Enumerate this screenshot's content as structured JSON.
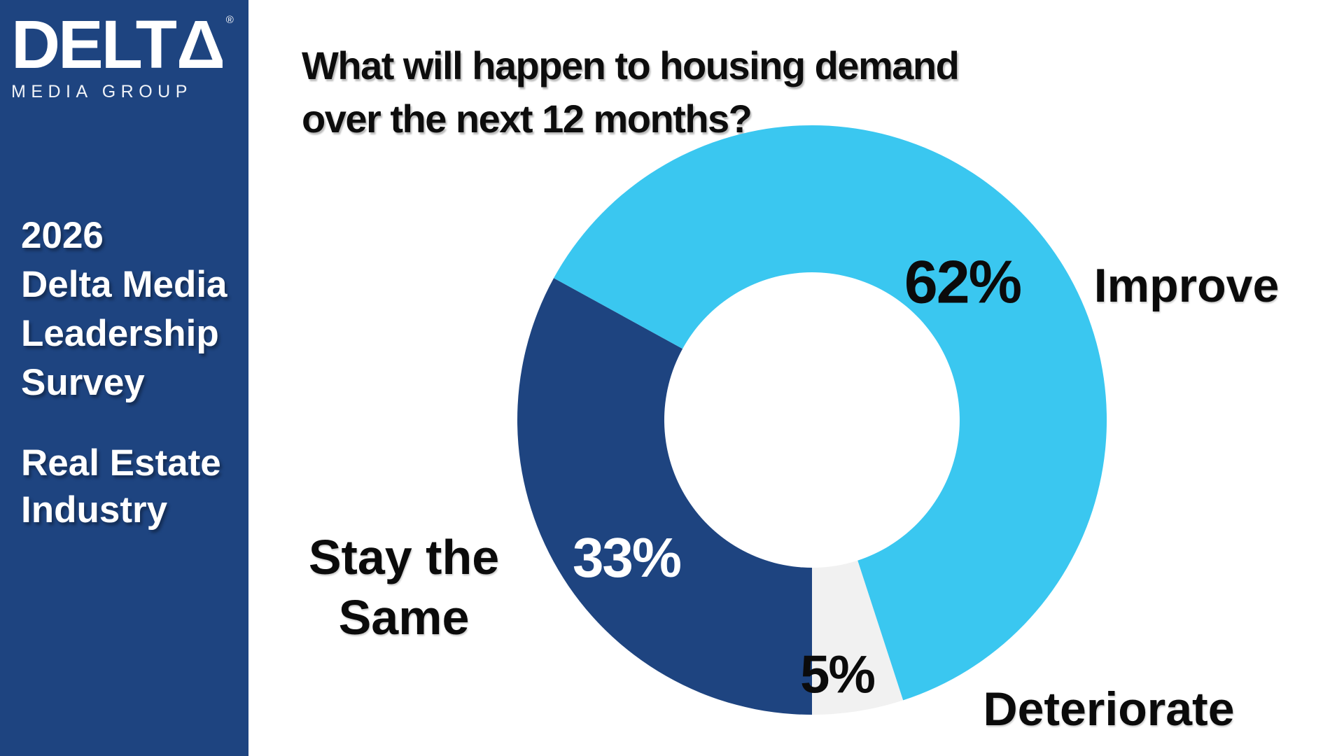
{
  "sidebar": {
    "bg_color": "#1E4480",
    "logo": {
      "brand_text": "DELT",
      "triangle_glyph": "Δ",
      "registered_mark": "®",
      "subtitle": "MEDIA GROUP"
    },
    "heading_lines": [
      "2026",
      "Delta Media",
      "Leadership",
      "Survey"
    ],
    "subheading_lines": [
      "Real Estate",
      "Industry"
    ]
  },
  "chart_data": {
    "type": "pie",
    "subtype": "donut",
    "title": "What will happen to housing demand over the next 12 months?",
    "title_lines": [
      "What will happen to housing demand",
      "over the next 12 months?"
    ],
    "categories": [
      "Improve",
      "Stay the Same",
      "Deteriorate"
    ],
    "values": [
      62,
      33,
      5
    ],
    "unit": "%",
    "slices": [
      {
        "label": "Stay the Same",
        "label_lines": [
          "Stay the",
          "Same"
        ],
        "value": 33,
        "display": "33%",
        "color": "#1E4480"
      },
      {
        "label": "Improve",
        "label_lines": [
          "Improve"
        ],
        "value": 62,
        "display": "62%",
        "color": "#3AC7F0"
      },
      {
        "label": "Deteriorate",
        "label_lines": [
          "Deteriorate"
        ],
        "value": 5,
        "display": "5%",
        "color": "#F1F1F1"
      }
    ],
    "layout": {
      "start_angle_deg": 180,
      "direction": "clockwise",
      "inner_radius_ratio": 0.5,
      "legend": "none",
      "label_style": "percent-inside-category-outside"
    }
  }
}
